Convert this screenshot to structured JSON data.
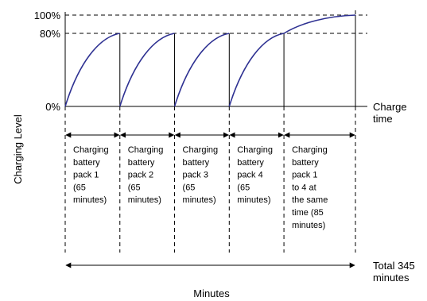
{
  "chart_data": {
    "type": "line",
    "title": "",
    "ylabel": "Charging Level",
    "xlabel": "Minutes",
    "x_axis_end_label": [
      "Charge",
      "time"
    ],
    "y_ticks": [
      {
        "value": 0,
        "label": "0%"
      },
      {
        "value": 80,
        "label": "80%"
      },
      {
        "value": 100,
        "label": "100%"
      }
    ],
    "ylim": [
      0,
      100
    ],
    "xlim": [
      0,
      345
    ],
    "grid": false,
    "legend": "none",
    "line_color": "#2e3192",
    "segments": [
      {
        "start": 0,
        "end": 65,
        "from": 0,
        "to": 80,
        "label": [
          "Charging",
          "battery",
          "pack 1",
          "(65",
          "minutes)"
        ]
      },
      {
        "start": 65,
        "end": 130,
        "from": 0,
        "to": 80,
        "label": [
          "Charging",
          "battery",
          "pack 2",
          "(65",
          "minutes)"
        ]
      },
      {
        "start": 130,
        "end": 195,
        "from": 0,
        "to": 80,
        "label": [
          "Charging",
          "battery",
          "pack 3",
          "(65",
          "minutes)"
        ]
      },
      {
        "start": 195,
        "end": 260,
        "from": 0,
        "to": 80,
        "label": [
          "Charging",
          "battery",
          "pack 4",
          "(65",
          "minutes)"
        ]
      },
      {
        "start": 260,
        "end": 345,
        "from": 80,
        "to": 100,
        "label": [
          "Charging",
          "battery",
          "pack 1",
          "to 4 at",
          "the same",
          "time (85",
          "minutes)"
        ]
      }
    ],
    "total_label": [
      "Total 345",
      "minutes"
    ]
  }
}
